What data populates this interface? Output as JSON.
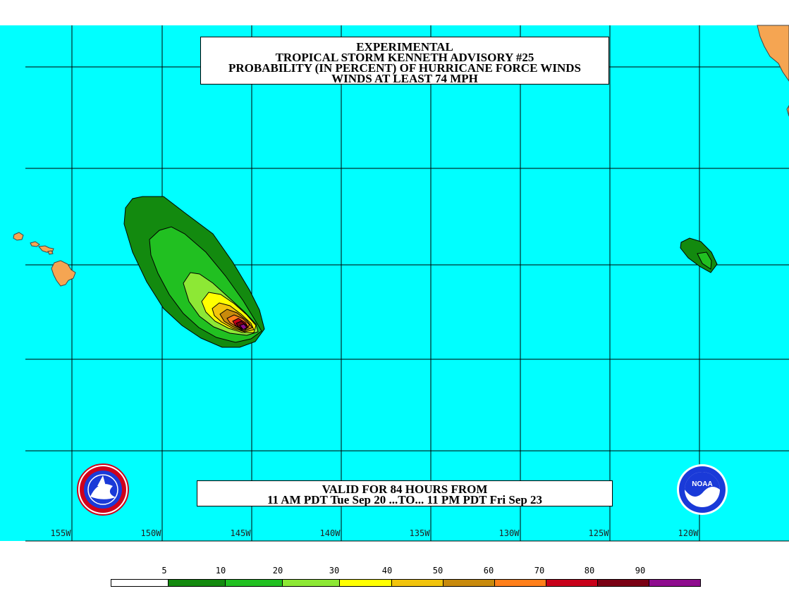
{
  "title": {
    "line1": "EXPERIMENTAL",
    "line2": "TROPICAL STORM KENNETH ADVISORY #25",
    "line3": "PROBABILITY (IN PERCENT) OF HURRICANE FORCE WINDS",
    "line4": "WINDS AT LEAST 74 MPH"
  },
  "valid": {
    "line1": "VALID FOR 84 HOURS FROM",
    "line2": "11 AM PDT Tue Sep 20 ...TO... 11 PM PDT Fri Sep 23"
  },
  "longitude_labels": [
    "155W",
    "150W",
    "145W",
    "140W",
    "135W",
    "130W",
    "125W",
    "120W"
  ],
  "legend": {
    "labels": [
      "5",
      "10",
      "20",
      "30",
      "40",
      "50",
      "60",
      "70",
      "80",
      "90"
    ],
    "colors": [
      "#ffffff",
      "#138a0f",
      "#21c021",
      "#8de835",
      "#ffff00",
      "#f2c40c",
      "#c88a0c",
      "#ff7f1a",
      "#c8001a",
      "#7a0014",
      "#8e0c8e"
    ]
  },
  "colors": {
    "ocean": "#00ffff",
    "land": "#f5a552",
    "grid": "#000000"
  },
  "logos": {
    "left": "nws-logo",
    "right": "noaa-logo",
    "right_text": "NOAA"
  }
}
